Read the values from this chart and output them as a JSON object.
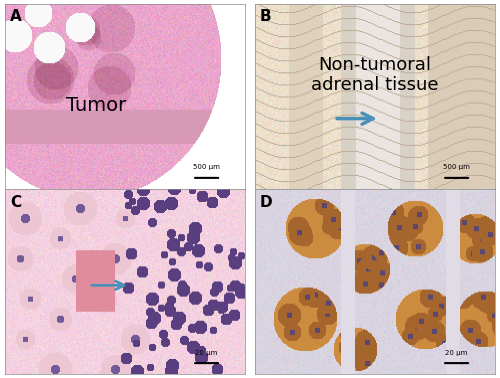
{
  "panels": [
    "A",
    "B",
    "C",
    "D"
  ],
  "panel_labels_fontsize": 11,
  "panel_label_color": "#000000",
  "text_A": "Tumor",
  "text_B": "Non-tumoral\nadrenal tissue",
  "text_A_fontsize": 14,
  "text_B_fontsize": 13,
  "arrow_color": "#4a90b8",
  "scale_bar_A": "500 μm",
  "scale_bar_B": "500 μm",
  "scale_bar_C": "20 μm",
  "scale_bar_D": "20 μm",
  "bg_color": "#ffffff"
}
